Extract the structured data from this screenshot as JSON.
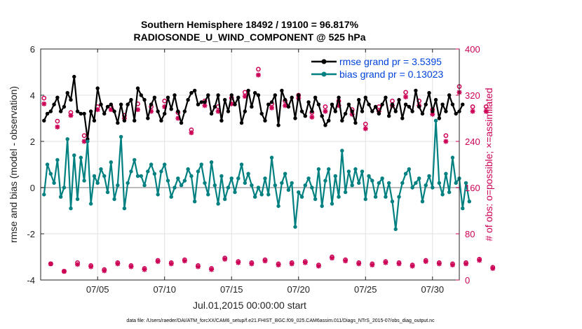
{
  "chart_data": {
    "type": "line",
    "title": "Southern Hemisphere 18492 / 19100 = 96.817%",
    "subtitle": "RADIOSONDE_U_WIND_COMPONENT @ 525 hPa",
    "xlabel": "Jul.01,2015 00:00:00 start",
    "ylabel": "rmse and bias (model - observation)",
    "ylabel_right": "# of obs: o=possible; ×=assimilated",
    "footnote": "data file: /Users/raeder/DAI/ATM_forcXX/CAM6_setup/f.e21.FHIST_BGC.f09_025.CAM6assim.011/Diags_NTrS_2015-07/obs_diag_output.nc",
    "xlim": [
      0.75,
      32
    ],
    "ylim": [
      -4,
      6
    ],
    "ylim_right": [
      0,
      400
    ],
    "xticks": [
      5,
      10,
      15,
      20,
      25,
      30
    ],
    "xtick_labels": [
      "07/05",
      "07/10",
      "07/15",
      "07/20",
      "07/25",
      "07/30"
    ],
    "yticks": [
      -4,
      -2,
      0,
      2,
      4,
      6
    ],
    "ytick_labels": [
      "-4",
      "-2",
      "0",
      "2",
      "4",
      "6"
    ],
    "yticks_right": [
      0,
      80,
      160,
      240,
      320,
      400
    ],
    "ytick_labels_right": [
      "0",
      "80",
      "160",
      "240",
      "320",
      "400"
    ],
    "grid": true,
    "legend_position": "top-right",
    "colors": {
      "rmse": "#000000",
      "bias": "#008080",
      "obs": "#cc0055",
      "zero": "#bbbbbb",
      "grid": "#e2e2e2"
    },
    "series": [
      {
        "name": "rmse grand pr = 3.5395",
        "color": "#000000",
        "x_start": 1.0,
        "x_step": 0.25,
        "values": [
          2.9,
          3.2,
          3.3,
          3.6,
          3.9,
          3.3,
          3.5,
          4.1,
          3.8,
          4.8,
          3.3,
          3.2,
          3.2,
          2.1,
          3.3,
          2.9,
          4.3,
          3.6,
          3.2,
          3.5,
          3.6,
          3.3,
          2.8,
          3.6,
          2.9,
          3.6,
          3.8,
          2.9,
          4.3,
          4.0,
          3.8,
          3.0,
          3.6,
          3.9,
          3.3,
          2.9,
          3.2,
          3.9,
          3.4,
          4.0,
          3.3,
          2.8,
          3.3,
          3.8,
          4.1,
          4.2,
          3.6,
          3.7,
          3.7,
          4.0,
          3.2,
          3.5,
          4.0,
          2.9,
          3.8,
          3.3,
          4.0,
          3.6,
          3.9,
          2.8,
          3.3,
          4.2,
          3.5,
          4.1,
          4.0,
          3.2,
          2.9,
          3.6,
          3.7,
          4.0,
          2.7,
          4.2,
          3.8,
          3.5,
          3.9,
          3.0,
          4.0,
          3.3,
          3.1,
          3.7,
          3.3,
          3.9,
          3.6,
          3.1,
          2.7,
          2.9,
          3.6,
          3.3,
          3.9,
          2.9,
          3.2,
          3.6,
          3.3,
          2.8,
          3.8,
          3.3,
          3.9,
          3.6,
          3.3,
          3.5,
          3.2,
          3.6,
          3.9,
          3.1,
          3.6,
          3.3,
          3.8,
          3.0,
          3.6,
          3.5,
          3.3,
          4.2,
          3.5,
          3.2,
          3.6,
          4.1,
          3.3,
          3.8,
          3.0,
          3.6,
          3.3,
          4.0,
          3.6,
          3.2,
          3.3,
          3.6
        ]
      },
      {
        "name": "bias grand pr = 0.13023",
        "color": "#008080",
        "x_start": 1.0,
        "x_step": 0.25,
        "values": [
          -0.3,
          1.0,
          0.6,
          0.2,
          1.2,
          -0.4,
          0.0,
          2.1,
          -0.9,
          1.4,
          -0.5,
          1.3,
          0.3,
          2.0,
          -0.7,
          0.5,
          0.2,
          0.8,
          0.5,
          -0.2,
          1.1,
          -0.5,
          0.1,
          2.2,
          -0.9,
          0.2,
          0.7,
          1.2,
          0.5,
          0.5,
          0.1,
          0.7,
          1.0,
          0.6,
          -0.3,
          0.7,
          1.0,
          0.3,
          -0.4,
          0.0,
          0.4,
          0.1,
          0.3,
          0.8,
          0.5,
          -0.6,
          0.7,
          1.0,
          0.2,
          -0.3,
          1.1,
          0.1,
          -0.7,
          0.5,
          -0.5,
          0.0,
          0.4,
          -0.2,
          0.4,
          1.0,
          0.2,
          0.6,
          0.1,
          -0.4,
          0.0,
          -0.3,
          0.4,
          -0.3,
          1.3,
          0.1,
          -0.8,
          0.2,
          0.6,
          -0.1,
          0.2,
          -1.7,
          -0.2,
          -0.4,
          0.1,
          0.4,
          0.0,
          -0.5,
          0.8,
          -0.8,
          0.3,
          0.8,
          -0.7,
          0.5,
          -0.4,
          1.6,
          -0.2,
          0.7,
          0.1,
          0.8,
          0.2,
          0.7,
          -0.5,
          0.5,
          0.3,
          -0.4,
          0.2,
          0.4,
          -0.4,
          0.2,
          -0.6,
          -1.8,
          -0.4,
          0.2,
          0.6,
          0.8,
          0.0,
          0.2,
          0.4,
          -0.6,
          0.1,
          0.5,
          0.0,
          2.9,
          0.2,
          -0.3,
          0.6,
          -0.2,
          1.3,
          0.2,
          0.4,
          -0.9,
          0.2,
          -0.6
        ]
      }
    ],
    "obs_counts": {
      "label": "# of obs",
      "x_start": 1.0,
      "x_step": 0.5,
      "possible": [
        315,
        28,
        275,
        15,
        290,
        30,
        250,
        25,
        300,
        18,
        300,
        30,
        285,
        25,
        305,
        20,
        300,
        34,
        310,
        30,
        290,
        35,
        260,
        25,
        310,
        20,
        300,
        38,
        315,
        32,
        325,
        30,
        365,
        35,
        305,
        28,
        310,
        30,
        320,
        32,
        290,
        26,
        300,
        40,
        310,
        35,
        295,
        30,
        270,
        28,
        300,
        32,
        310,
        30,
        325,
        26,
        310,
        34,
        295,
        30,
        250,
        28,
        335,
        30,
        300,
        36,
        300,
        22
      ],
      "assimilated": [
        305,
        28,
        265,
        15,
        285,
        27,
        240,
        23,
        295,
        16,
        295,
        28,
        280,
        23,
        295,
        18,
        292,
        32,
        300,
        28,
        280,
        33,
        255,
        23,
        302,
        18,
        292,
        36,
        305,
        30,
        318,
        28,
        355,
        33,
        298,
        26,
        302,
        28,
        315,
        30,
        282,
        24,
        292,
        38,
        302,
        33,
        287,
        28,
        262,
        26,
        292,
        30,
        302,
        28,
        317,
        24,
        302,
        32,
        287,
        28,
        240,
        26,
        325,
        28,
        292,
        34,
        292,
        20
      ]
    }
  }
}
